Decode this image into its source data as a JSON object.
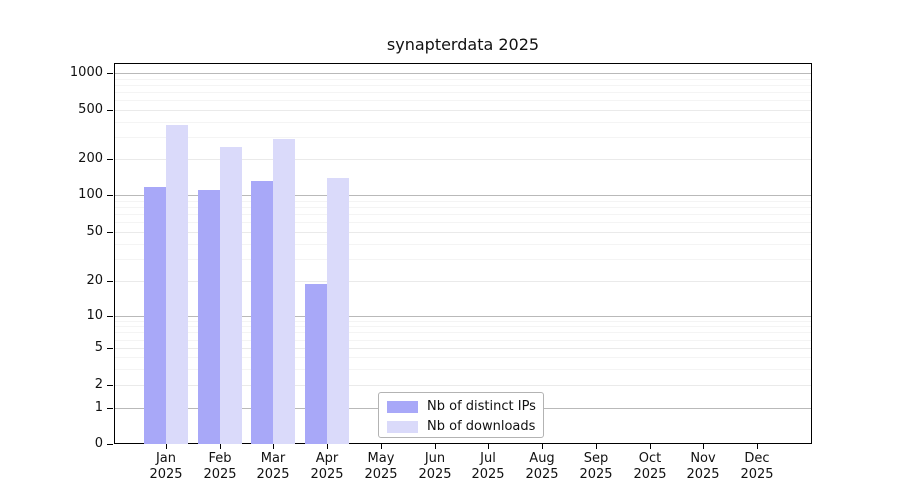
{
  "title": "synapterdata 2025",
  "legend": {
    "items": [
      {
        "label": "Nb of distinct IPs",
        "color": "#a8a8f8"
      },
      {
        "label": "Nb of downloads",
        "color": "#dadafa"
      }
    ]
  },
  "colors": {
    "bar_distinct_ips": "#a8a8f8",
    "bar_downloads": "#dadafa",
    "grid_decade": "#b9b9b9",
    "grid_sub": "#eaeaea",
    "grid_minor": "#f4f4f4",
    "axis": "#000000"
  },
  "chart_data": {
    "type": "bar",
    "title": "synapterdata 2025",
    "categories": [
      "Jan 2025",
      "Feb 2025",
      "Mar 2025",
      "Apr 2025",
      "May 2025",
      "Jun 2025",
      "Jul 2025",
      "Aug 2025",
      "Sep 2025",
      "Oct 2025",
      "Nov 2025",
      "Dec 2025"
    ],
    "series": [
      {
        "name": "Nb of distinct IPs",
        "color": "#a8a8f8",
        "values": [
          117,
          110,
          132,
          19,
          0,
          0,
          0,
          0,
          0,
          0,
          0,
          0
        ]
      },
      {
        "name": "Nb of downloads",
        "color": "#dadafa",
        "values": [
          375,
          250,
          290,
          140,
          0,
          0,
          0,
          0,
          0,
          0,
          0,
          0
        ]
      }
    ],
    "yscale": "symlog",
    "ylim": [
      0,
      1000
    ],
    "ytick_values": [
      0,
      1,
      2,
      5,
      10,
      20,
      50,
      100,
      200,
      500,
      1000
    ],
    "ytick_labels": [
      "0",
      "1",
      "2",
      "5",
      "10",
      "20",
      "50",
      "100",
      "200",
      "500",
      "1000"
    ],
    "grid_sub_values": [
      2,
      5,
      20,
      50,
      200,
      500
    ],
    "grid_minor_values": [
      3,
      4,
      6,
      7,
      8,
      9,
      30,
      40,
      60,
      70,
      80,
      90,
      300,
      400,
      600,
      700,
      800,
      900
    ],
    "grid": "both",
    "legend_position": "lower center",
    "xlabel": "",
    "ylabel": ""
  }
}
